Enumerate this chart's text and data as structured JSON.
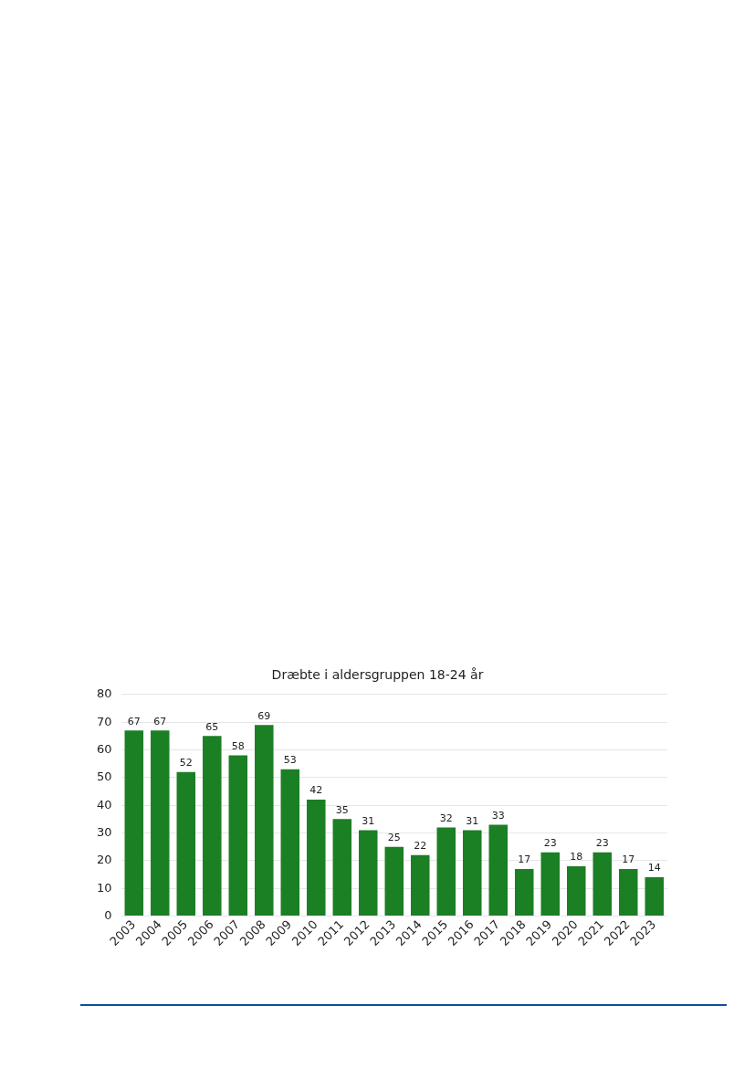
{
  "chart_data": {
    "type": "bar",
    "title": "Dræbte i aldersgruppen 18-24 år",
    "categories": [
      "2003",
      "2004",
      "2005",
      "2006",
      "2007",
      "2008",
      "2009",
      "2010",
      "2011",
      "2012",
      "2013",
      "2014",
      "2015",
      "2016",
      "2017",
      "2018",
      "2019",
      "2020",
      "2021",
      "2022",
      "2023"
    ],
    "values": [
      67,
      67,
      52,
      65,
      58,
      69,
      53,
      42,
      35,
      31,
      25,
      22,
      32,
      31,
      33,
      17,
      23,
      18,
      23,
      17,
      14
    ],
    "color": "#1b7f24",
    "ylim": [
      0,
      80
    ],
    "yticks": [
      0,
      10,
      20,
      30,
      40,
      50,
      60,
      70,
      80
    ],
    "grid": "y",
    "data_labels": true
  }
}
